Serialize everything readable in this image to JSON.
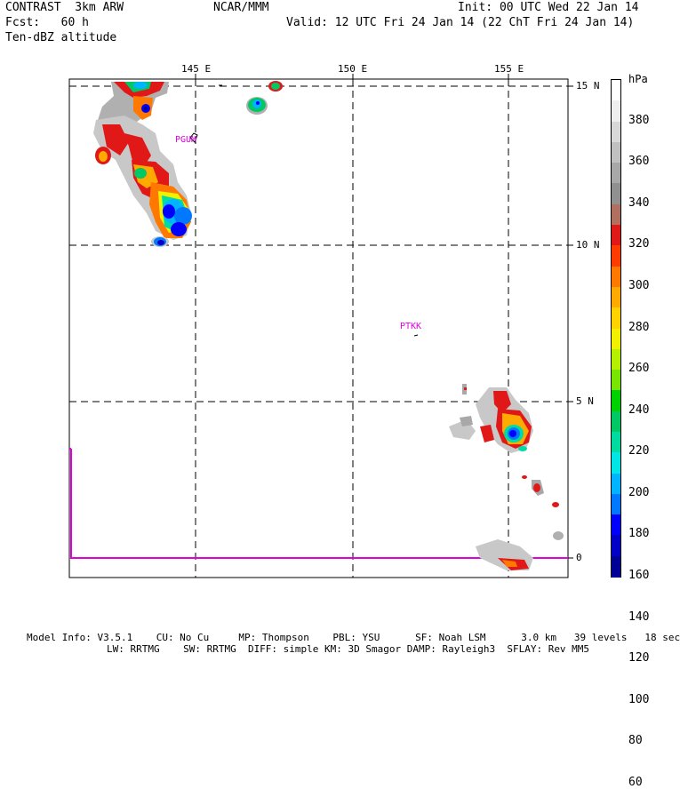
{
  "header": {
    "left_line1": "CONTRAST  3km ARW",
    "left_line2": "Fcst:   60 h",
    "left_line3": "Ten-dBZ altitude",
    "center_line1": "NCAR/MMM",
    "right_line1": "Init: 00 UTC Wed 22 Jan 14",
    "right_line2": "Valid: 12 UTC Fri 24 Jan 14 (22 ChT Fri 24 Jan 14)"
  },
  "map": {
    "lon_labels": [
      "145 E",
      "150 E",
      "155 E"
    ],
    "lat_labels": [
      "15 N",
      "10 N",
      "5 N",
      "0"
    ],
    "stations": [
      "PGUM",
      "PTKK"
    ]
  },
  "legend": {
    "unit": "hPa",
    "labels": [
      "380",
      "360",
      "340",
      "320",
      "300",
      "280",
      "260",
      "240",
      "220",
      "200",
      "180",
      "160",
      "140",
      "120",
      "100",
      "80",
      "60"
    ],
    "colors": [
      "#ffffff",
      "#eeeeee",
      "#d8d8d8",
      "#c0c0c0",
      "#a8a8a8",
      "#909090",
      "#b07060",
      "#e01818",
      "#ff3c00",
      "#ff7800",
      "#ffaa00",
      "#ffd200",
      "#f0f000",
      "#b4f000",
      "#78e600",
      "#00d200",
      "#00c864",
      "#00dca0",
      "#00e6e6",
      "#00b4ff",
      "#0078ff",
      "#0000ff",
      "#0000c8",
      "#000096"
    ]
  },
  "footer": {
    "line1": "Model Info: V3.5.1    CU: No Cu     MP: Thompson    PBL: YSU      SF: Noah LSM      3.0 km   39 levels   18 sec",
    "line2": "LW: RRTMG    SW: RRTMG  DIFF: simple KM: 3D Smagor DAMP: Rayleigh3  SFLAY: Rev MM5"
  }
}
